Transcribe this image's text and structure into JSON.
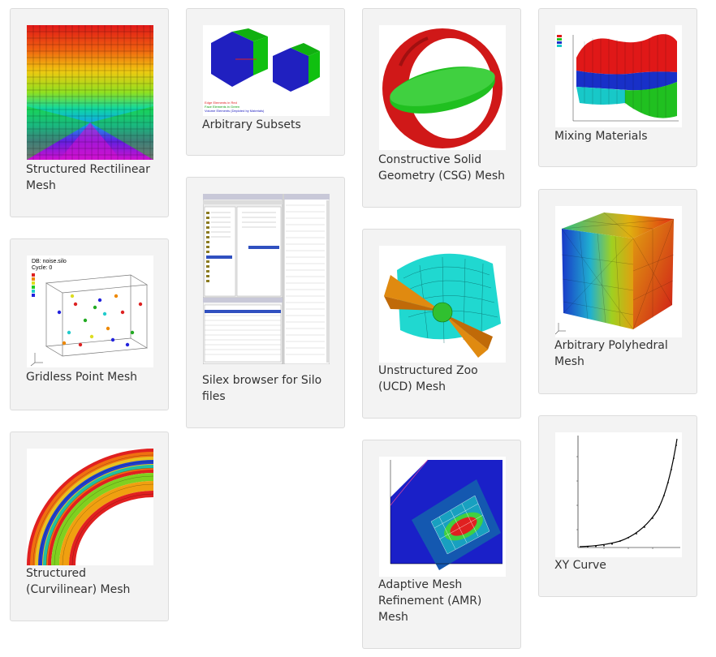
{
  "gallery": {
    "items": [
      {
        "id": "structured-rectilinear",
        "label": "Structured Rectilinear Mesh"
      },
      {
        "id": "arbitrary-subsets",
        "label": "Arbitrary Subsets"
      },
      {
        "id": "csg",
        "label": "Constructive Solid Geometry (CSG) Mesh"
      },
      {
        "id": "mixing-materials",
        "label": "Mixing Materials"
      },
      {
        "id": "gridless-point",
        "label": "Gridless Point Mesh"
      },
      {
        "id": "silex",
        "label": "Silex browser for Silo files"
      },
      {
        "id": "ucd",
        "label": "Unstructured Zoo (UCD) Mesh"
      },
      {
        "id": "polyhedral",
        "label": "Arbitrary Polyhedral Mesh"
      },
      {
        "id": "curvilinear",
        "label": "Structured (Curvilinear) Mesh"
      },
      {
        "id": "amr",
        "label": "Adaptive Mesh Refinement (AMR) Mesh"
      },
      {
        "id": "xy-curve",
        "label": "XY Curve"
      }
    ]
  },
  "thumbnails": {
    "gridless": {
      "title": "DB: noise.silo",
      "cycle": "Cycle: 0"
    },
    "subsets": {
      "legend": [
        "Edge Elements in Red",
        "Face Elements in Green",
        "Volume Elements (Depicted by Materials)"
      ]
    }
  },
  "colors": {
    "card_bg": "#f3f3f3",
    "card_border": "#dcdcdc",
    "caption": "#333333"
  }
}
